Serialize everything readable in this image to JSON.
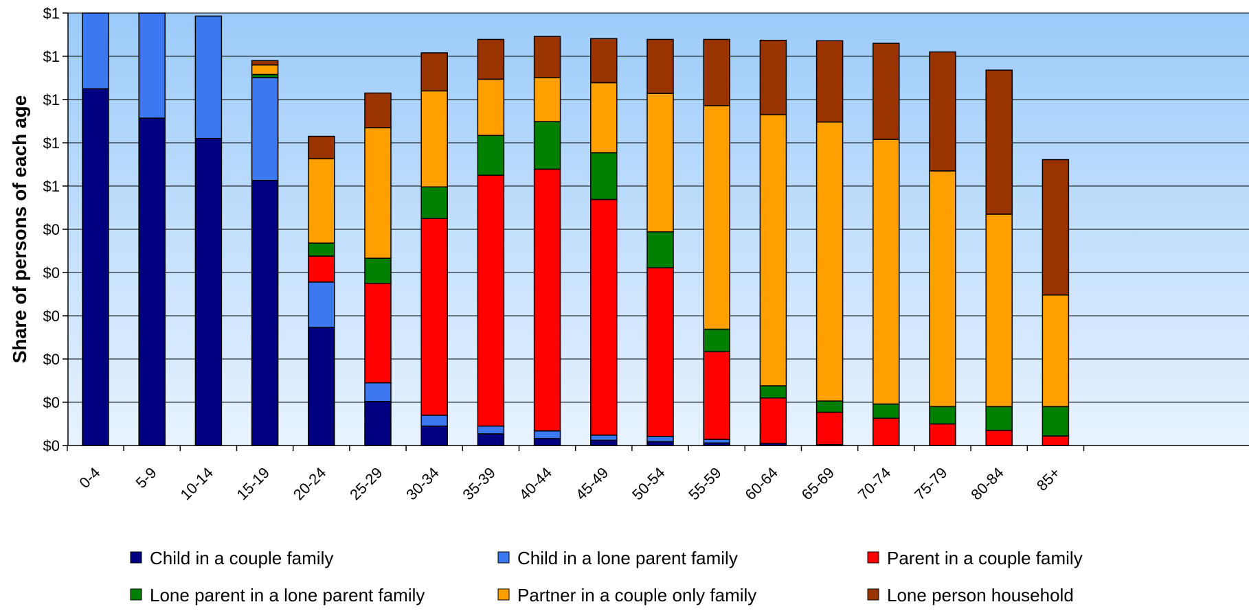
{
  "chart_data": {
    "type": "bar",
    "stacked": true,
    "title": "",
    "xlabel": "",
    "ylabel": "Share of persons of each age",
    "ylim": [
      0,
      1
    ],
    "y_tick_values": [
      0,
      0.1,
      0.2,
      0.3,
      0.4,
      0.5,
      0.6,
      0.7,
      0.8,
      0.9,
      1.0
    ],
    "y_tick_labels": [
      "$0",
      "$0",
      "$0",
      "$0",
      "$0",
      "$0",
      "$1",
      "$1",
      "$1",
      "$1",
      "$1"
    ],
    "grid": true,
    "legend_position": "bottom",
    "categories": [
      "0-4",
      "5-9",
      "10-14",
      "15-19",
      "20-24",
      "25-29",
      "30-34",
      "35-39",
      "40-44",
      "45-49",
      "50-54",
      "55-59",
      "60-64",
      "65-69",
      "70-74",
      "75-79",
      "80-84",
      "85+"
    ],
    "series": [
      {
        "name": "Child in a couple family",
        "color": "#000080",
        "values": [
          0.825,
          0.757,
          0.71,
          0.613,
          0.273,
          0.102,
          0.045,
          0.027,
          0.016,
          0.012,
          0.009,
          0.006,
          0.005,
          0.002,
          0.0,
          0.0,
          0.0,
          0.0
        ]
      },
      {
        "name": "Child in a lone parent family",
        "color": "#3C78F0",
        "values": [
          0.175,
          0.243,
          0.283,
          0.238,
          0.105,
          0.043,
          0.025,
          0.018,
          0.018,
          0.012,
          0.012,
          0.008,
          0.0,
          0.0,
          0.0,
          0.0,
          0.0,
          0.0
        ]
      },
      {
        "name": "Parent in a couple family",
        "color": "#FF0000",
        "values": [
          0.0,
          0.0,
          0.0,
          0.0,
          0.06,
          0.23,
          0.455,
          0.58,
          0.605,
          0.545,
          0.39,
          0.203,
          0.105,
          0.075,
          0.063,
          0.05,
          0.035,
          0.022
        ]
      },
      {
        "name": "Lone parent in a lone parent family",
        "color": "#008000",
        "values": [
          0.0,
          0.0,
          0.0,
          0.007,
          0.03,
          0.058,
          0.073,
          0.092,
          0.11,
          0.108,
          0.083,
          0.052,
          0.028,
          0.026,
          0.033,
          0.04,
          0.055,
          0.068
        ]
      },
      {
        "name": "Partner in a couple only family",
        "color": "#FFA000",
        "values": [
          0.0,
          0.0,
          0.0,
          0.022,
          0.195,
          0.302,
          0.222,
          0.13,
          0.102,
          0.162,
          0.32,
          0.517,
          0.627,
          0.645,
          0.612,
          0.545,
          0.445,
          0.258
        ]
      },
      {
        "name": "Lone person household",
        "color": "#993300",
        "values": [
          0.0,
          0.0,
          0.0,
          0.01,
          0.052,
          0.08,
          0.088,
          0.092,
          0.095,
          0.102,
          0.125,
          0.153,
          0.172,
          0.188,
          0.222,
          0.275,
          0.333,
          0.313
        ]
      }
    ]
  }
}
